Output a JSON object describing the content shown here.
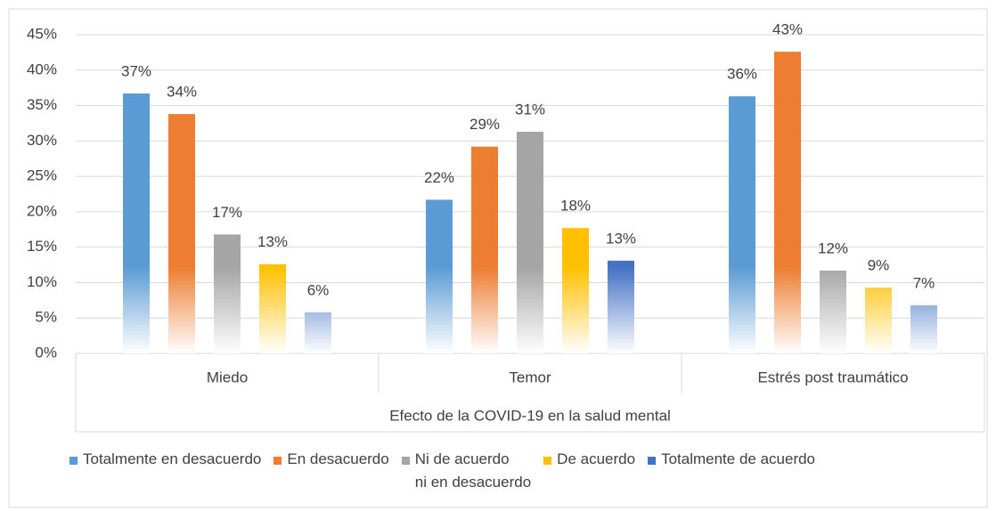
{
  "chart_data": {
    "type": "bar",
    "x_label": "Efecto de la COVID-19 en la salud mental",
    "categories": [
      "Miedo",
      "Temor",
      "Estrés post traumático"
    ],
    "series": [
      {
        "name": "Totalmente en desacuerdo",
        "color": "#5B9BD5",
        "values": [
          36.7,
          21.7,
          36.3
        ],
        "value_labels": [
          "37%",
          "22%",
          "36%"
        ]
      },
      {
        "name": "En desacuerdo",
        "color": "#ED7D31",
        "values": [
          33.8,
          29.2,
          42.6
        ],
        "value_labels": [
          "34%",
          "29%",
          "43%"
        ]
      },
      {
        "name": "Ni de acuerdo\nni en desacuerdo",
        "color": "#A5A5A5",
        "values": [
          16.8,
          31.3,
          11.7
        ],
        "value_labels": [
          "17%",
          "31%",
          "12%"
        ]
      },
      {
        "name": "De acuerdo",
        "color": "#FFC000",
        "values": [
          12.6,
          17.7,
          9.3
        ],
        "value_labels": [
          "13%",
          "18%",
          "9%"
        ]
      },
      {
        "name": "Totalmente de acuerdo",
        "color": "#4472C4",
        "values": [
          5.8,
          13.1,
          6.8
        ],
        "value_labels": [
          "6%",
          "13%",
          "7%"
        ]
      }
    ],
    "ylim": [
      0,
      45
    ],
    "yticks": [
      {
        "value": 0,
        "label": "0%"
      },
      {
        "value": 5,
        "label": "5%"
      },
      {
        "value": 10,
        "label": "10%"
      },
      {
        "value": 15,
        "label": "15%"
      },
      {
        "value": 20,
        "label": "20%"
      },
      {
        "value": 25,
        "label": "25%"
      },
      {
        "value": 30,
        "label": "30%"
      },
      {
        "value": 35,
        "label": "35%"
      },
      {
        "value": 40,
        "label": "40%"
      },
      {
        "value": 45,
        "label": "45%"
      }
    ],
    "grid": true,
    "legend": "bottom"
  }
}
